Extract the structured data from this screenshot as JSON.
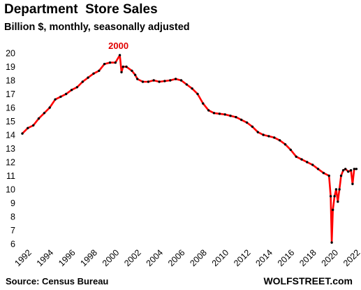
{
  "chart_data": {
    "type": "line",
    "title": "Department  Store Sales",
    "subtitle": "Billion $, monthly, seasonally adjusted",
    "source": "Source: Census Bureau",
    "brand": "WOLFSTREET.com",
    "annotation": {
      "label": "2000",
      "x": 2000.9,
      "y": 19.85
    },
    "x_ticks": [
      1992,
      1994,
      1996,
      1998,
      2000,
      2002,
      2004,
      2006,
      2008,
      2010,
      2012,
      2014,
      2016,
      2018,
      2020,
      2022
    ],
    "y_ticks": [
      6,
      7,
      8,
      9,
      10,
      11,
      12,
      13,
      14,
      15,
      16,
      17,
      18,
      19,
      20
    ],
    "xlim": [
      1992,
      2022.6
    ],
    "ylim": [
      6,
      20
    ],
    "grid": false,
    "line_color": "#ff0000",
    "marker_color": "#000000",
    "series": [
      {
        "x": [
          1992.0,
          1992.5,
          1993.0,
          1993.5,
          1994.0,
          1994.5,
          1995.0,
          1995.5,
          1996.0,
          1996.5,
          1997.0,
          1997.5,
          1998.0,
          1998.5,
          1999.0,
          1999.5,
          2000.0,
          2000.5,
          2000.9,
          2001.05,
          2001.2,
          2001.5,
          2002.0,
          2002.3,
          2002.5,
          2003.0,
          2003.5,
          2004.0,
          2004.5,
          2005.0,
          2005.5,
          2006.0,
          2006.5,
          2007.0,
          2007.5,
          2008.0,
          2008.5,
          2009.0,
          2009.5,
          2010.0,
          2010.5,
          2011.0,
          2011.5,
          2012.0,
          2012.5,
          2013.0,
          2013.5,
          2014.0,
          2014.5,
          2015.0,
          2015.5,
          2016.0,
          2016.5,
          2017.0,
          2017.5,
          2018.0,
          2018.5,
          2019.0,
          2019.5,
          2020.0,
          2020.15,
          2020.25,
          2020.35,
          2020.5,
          2020.65,
          2020.8,
          2020.95,
          2021.1,
          2021.3,
          2021.5,
          2021.75,
          2022.0,
          2022.15,
          2022.3,
          2022.5
        ],
        "y": [
          14.1,
          14.5,
          14.7,
          15.2,
          15.6,
          16.0,
          16.6,
          16.8,
          17.0,
          17.3,
          17.5,
          17.9,
          18.2,
          18.5,
          18.7,
          19.2,
          19.3,
          19.3,
          19.85,
          18.6,
          19.0,
          19.0,
          18.7,
          18.4,
          18.1,
          17.9,
          17.9,
          18.0,
          17.9,
          17.95,
          18.0,
          18.1,
          18.0,
          17.7,
          17.4,
          17.0,
          16.3,
          15.8,
          15.6,
          15.55,
          15.5,
          15.4,
          15.3,
          15.1,
          14.9,
          14.6,
          14.2,
          14.0,
          13.9,
          13.8,
          13.6,
          13.3,
          12.9,
          12.4,
          12.2,
          12.0,
          11.8,
          11.5,
          11.2,
          11.0,
          9.5,
          6.1,
          8.5,
          9.5,
          10.0,
          9.1,
          10.0,
          11.0,
          11.4,
          11.5,
          11.3,
          11.4,
          10.4,
          11.5,
          11.5
        ]
      }
    ]
  }
}
